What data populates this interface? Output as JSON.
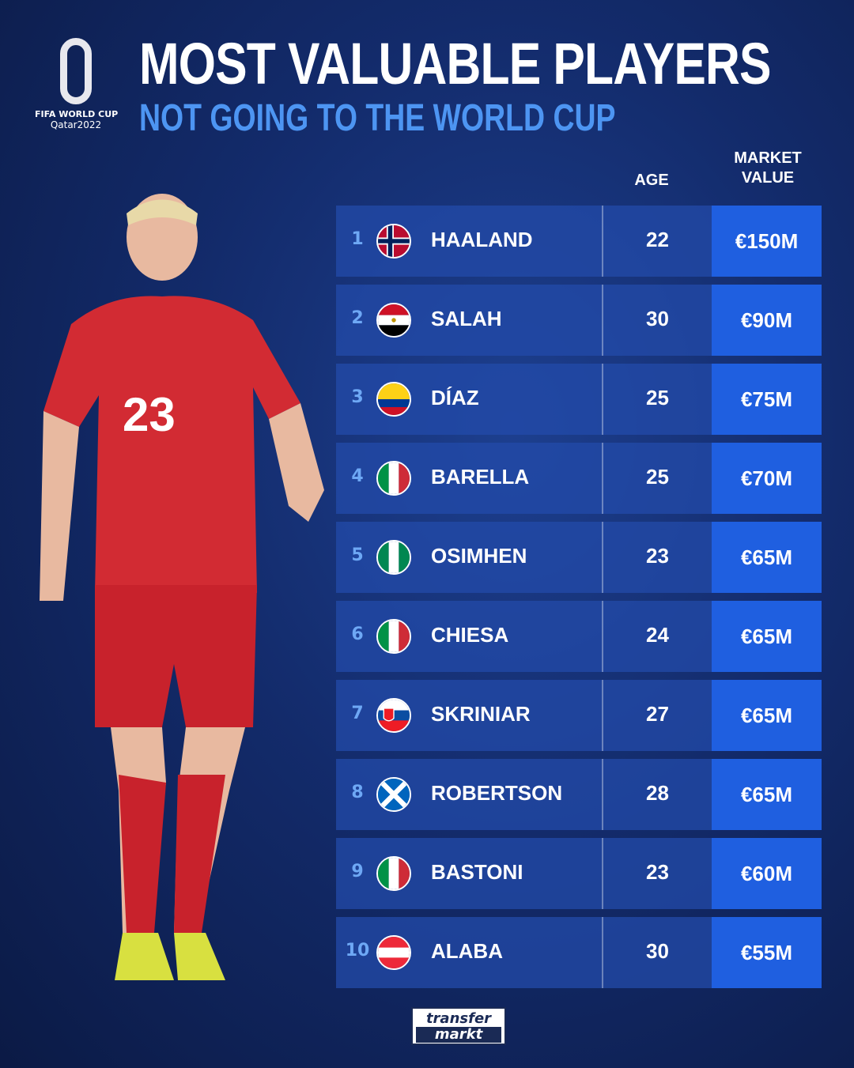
{
  "logo": {
    "line1": "FIFA WORLD CUP",
    "line2": "Qatar2022"
  },
  "header": {
    "title": "MOST VALUABLE PLAYERS",
    "subtitle": "NOT GOING TO THE WORLD CUP"
  },
  "columns": {
    "age": "AGE",
    "market_value": "MARKET\nVALUE"
  },
  "colors": {
    "accent": "#4d95f2",
    "value_box": "#1f5fe0",
    "row": "#234baa"
  },
  "rows": [
    {
      "rank": "1",
      "flag": "norway-flag-icon",
      "name": "HAALAND",
      "age": "22",
      "value": "€150M"
    },
    {
      "rank": "2",
      "flag": "egypt-flag-icon",
      "name": "SALAH",
      "age": "30",
      "value": "€90M"
    },
    {
      "rank": "3",
      "flag": "colombia-flag-icon",
      "name": "DÍAZ",
      "age": "25",
      "value": "€75M"
    },
    {
      "rank": "4",
      "flag": "italy-flag-icon",
      "name": "BARELLA",
      "age": "25",
      "value": "€70M"
    },
    {
      "rank": "5",
      "flag": "nigeria-flag-icon",
      "name": "OSIMHEN",
      "age": "23",
      "value": "€65M"
    },
    {
      "rank": "6",
      "flag": "italy-flag-icon",
      "name": "CHIESA",
      "age": "24",
      "value": "€65M"
    },
    {
      "rank": "7",
      "flag": "slovakia-flag-icon",
      "name": "SKRINIAR",
      "age": "27",
      "value": "€65M"
    },
    {
      "rank": "8",
      "flag": "scotland-flag-icon",
      "name": "ROBERTSON",
      "age": "28",
      "value": "€65M"
    },
    {
      "rank": "9",
      "flag": "italy-flag-icon",
      "name": "BASTONI",
      "age": "23",
      "value": "€60M"
    },
    {
      "rank": "10",
      "flag": "austria-flag-icon",
      "name": "ALABA",
      "age": "30",
      "value": "€55M"
    }
  ],
  "player": {
    "shirt_number": "23"
  },
  "footer": {
    "brand_line1": "transfer",
    "brand_line2": "markt"
  }
}
